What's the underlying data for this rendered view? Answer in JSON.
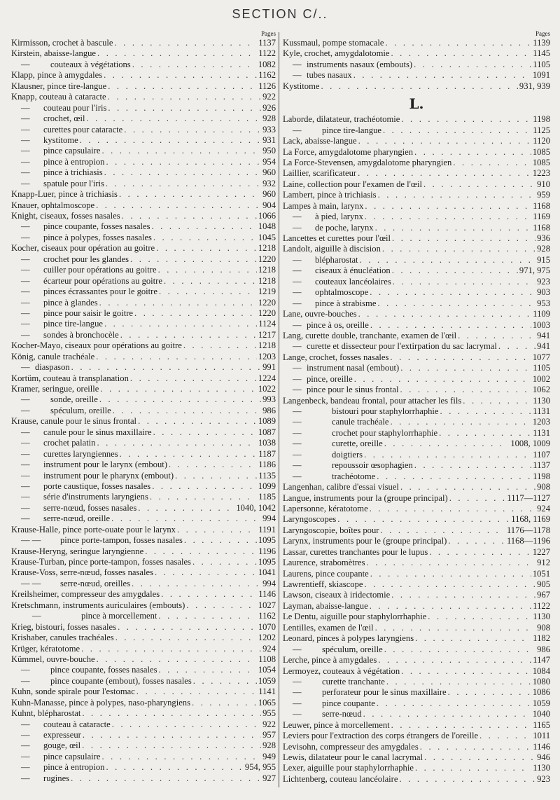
{
  "header": {
    "title": "SECTION C/.."
  },
  "left": {
    "pages_label": "Pages",
    "entries": [
      {
        "text": "Kirmisson, crochet à bascule",
        "pages": "1137"
      },
      {
        "text": "Kirstein, abaisse-langue",
        "pages": "1122"
      },
      {
        "dash": "—",
        "text": "couteaux à végétations",
        "pages": "1082",
        "indent": 2
      },
      {
        "text": "Klapp, pince à amygdales",
        "pages": "1162"
      },
      {
        "text": "Klausner, pince tire-langue",
        "pages": "1126"
      },
      {
        "text": "Knapp, couteau à cataracte",
        "pages": "922"
      },
      {
        "dash": "—",
        "text": "couteau pour l'iris",
        "pages": "926",
        "indent": 1
      },
      {
        "dash": "—",
        "text": "crochet, œil",
        "pages": "928",
        "indent": 1
      },
      {
        "dash": "—",
        "text": "curettes pour cataracte",
        "pages": "933",
        "indent": 1
      },
      {
        "dash": "—",
        "text": "kystitome",
        "pages": "931",
        "indent": 1
      },
      {
        "dash": "—",
        "text": "pince capsulaire",
        "pages": "950",
        "indent": 1
      },
      {
        "dash": "—",
        "text": "pince à entropion",
        "pages": "954",
        "indent": 1
      },
      {
        "dash": "—",
        "text": "pince à trichiasis",
        "pages": "960",
        "indent": 1
      },
      {
        "dash": "—",
        "text": "spatule pour l'iris",
        "pages": "932",
        "indent": 1
      },
      {
        "text": "Knapp-Luer, pince à trichiasis",
        "pages": "960"
      },
      {
        "text": "Knauer, ophtalmoscope",
        "pages": "904"
      },
      {
        "text": "Knight, ciseaux, fosses nasales",
        "pages": "1066"
      },
      {
        "dash": "—",
        "text": "pince coupante, fosses nasales",
        "pages": "1048",
        "indent": 1
      },
      {
        "dash": "—",
        "text": "pince à polypes, fosses nasales",
        "pages": "1045",
        "indent": 1
      },
      {
        "text": "Kocher, ciseaux pour opération au goitre",
        "pages": "1218"
      },
      {
        "dash": "—",
        "text": "crochet pour les glandes",
        "pages": "1220",
        "indent": 1
      },
      {
        "dash": "—",
        "text": "cuiller pour opérations au goitre",
        "pages": "1218",
        "indent": 1
      },
      {
        "dash": "—",
        "text": "écarteur pour opérations au goitre",
        "pages": "1218",
        "indent": 1
      },
      {
        "dash": "—",
        "text": "pinces écrassantes pour le goitre",
        "pages": "1219",
        "indent": 1
      },
      {
        "dash": "—",
        "text": "pince à glandes",
        "pages": "1220",
        "indent": 1
      },
      {
        "dash": "—",
        "text": "pince pour saisir le goitre",
        "pages": "1220",
        "indent": 1
      },
      {
        "dash": "—",
        "text": "pince tire-langue",
        "pages": "1124",
        "indent": 1
      },
      {
        "dash": "—",
        "text": "sondes à bronchocèle",
        "pages": "1217",
        "indent": 1
      },
      {
        "text": "Kocher-Mayo, ciseaux pour opérations au goitre",
        "pages": "1218"
      },
      {
        "text": "König, canule trachéale",
        "pages": "1203"
      },
      {
        "dash": "—",
        "text": "diaspason",
        "pages": "991",
        "indent": 0
      },
      {
        "text": "Kortüm, couteau à transplanation",
        "pages": "1224"
      },
      {
        "text": "Kramer, seringue, oreille",
        "pages": "1022"
      },
      {
        "dash": "—",
        "text": "sonde, oreille",
        "pages": "993",
        "indent": 2
      },
      {
        "dash": "—",
        "text": "spéculum, oreille",
        "pages": "986",
        "indent": 2
      },
      {
        "text": "Krause, canule pour le sinus frontal",
        "pages": "1089"
      },
      {
        "dash": "—",
        "text": "canule pour le sinus maxillaire",
        "pages": "1087",
        "indent": 1
      },
      {
        "dash": "—",
        "text": "crochet palatin",
        "pages": "1038",
        "indent": 1
      },
      {
        "dash": "—",
        "text": "curettes laryngiennes",
        "pages": "1187",
        "indent": 1
      },
      {
        "dash": "—",
        "text": "instrument pour le larynx (embout)",
        "pages": "1186",
        "indent": 1
      },
      {
        "dash": "—",
        "text": "instrument pour le pharynx (embout)",
        "pages": "1135",
        "indent": 1
      },
      {
        "dash": "—",
        "text": "porte caustique, fosses nasales",
        "pages": "1099",
        "indent": 1
      },
      {
        "dash": "—",
        "text": "série d'instruments laryngiens",
        "pages": "1185",
        "indent": 1
      },
      {
        "dash": "—",
        "text": "serre-nœud, fosses nasales",
        "pages": "1040, 1042",
        "indent": 1
      },
      {
        "dash": "—",
        "text": "serre-nœud, oreille",
        "pages": "994",
        "indent": 1
      },
      {
        "text": "Krause-Halle, pince porte-ouate pour le larynx",
        "pages": "1191"
      },
      {
        "dash": "—   —",
        "text": "pince porte-tampon, fosses nasales",
        "pages": "1095",
        "indent": 3
      },
      {
        "text": "Krause-Heryng, seringue laryngienne",
        "pages": "1196"
      },
      {
        "text": "Krause-Turban, pince porte-tampon, fosses nasales",
        "pages": "1095"
      },
      {
        "text": "Krause-Voss, serre-nœud, fosses nasales",
        "pages": "1041"
      },
      {
        "dash": "—   —",
        "text": "serre-nœud, oreilles",
        "pages": "994",
        "indent": 3
      },
      {
        "text": "Kreilsheimer, compresseur des amygdales",
        "pages": "1146"
      },
      {
        "text": "Kretschmann, instruments auriculaires (embouts)",
        "pages": "1027"
      },
      {
        "dash": "—",
        "text": "pince à morcellement",
        "pages": "1162",
        "indent": 4
      },
      {
        "text": "Krieg, bistouri, fosses nasales",
        "pages": "1070"
      },
      {
        "text": "Krishaber, canules trachéales",
        "pages": "1202"
      },
      {
        "text": "Krüger, kératotome",
        "pages": "924"
      },
      {
        "text": "Kümmel, ouvre-bouche",
        "pages": "1108"
      },
      {
        "dash": "—",
        "text": "pince coupante, fosses nasales",
        "pages": "1054",
        "indent": 2
      },
      {
        "dash": "—",
        "text": "pince coupante (embout), fosses nasales",
        "pages": "1059",
        "indent": 2
      },
      {
        "text": "Kuhn, sonde spirale pour l'estomac",
        "pages": "1141"
      },
      {
        "text": "Kuhn-Manasse, pince à polypes, naso-pharyngiens",
        "pages": "1065"
      },
      {
        "text": "Kuhnt, blépharostat",
        "pages": "955"
      },
      {
        "dash": "—",
        "text": "couteau à cataracte",
        "pages": "922",
        "indent": 1
      },
      {
        "dash": "—",
        "text": "expresseur",
        "pages": "957",
        "indent": 1
      },
      {
        "dash": "—",
        "text": "gouge, œil",
        "pages": "928",
        "indent": 1
      },
      {
        "dash": "—",
        "text": "pince capsulaire",
        "pages": "949",
        "indent": 1
      },
      {
        "dash": "—",
        "text": "pince à entropion",
        "pages": "954, 955",
        "indent": 1
      },
      {
        "dash": "—",
        "text": "rugines",
        "pages": "927",
        "indent": 1
      }
    ]
  },
  "right": {
    "pages_label": "Pages",
    "entries": [
      {
        "text": "Kussmaul, pompe stomacale",
        "pages": "1139"
      },
      {
        "text": "Kyle, crochet, amygdalotomie",
        "pages": "1145"
      },
      {
        "dash": "—",
        "text": "instruments nasaux (embouts)",
        "pages": "1105",
        "indent": 0
      },
      {
        "dash": "—",
        "text": "tubes nasaux",
        "pages": "1091",
        "indent": 0
      },
      {
        "text": "Kystitome",
        "pages": "931, 939"
      },
      {
        "letter": "L."
      },
      {
        "text": "Laborde, dilatateur, trachéotomie",
        "pages": "1198"
      },
      {
        "dash": "—",
        "text": "pince tire-langue",
        "pages": "1125",
        "indent": 2
      },
      {
        "text": "Lack, abaisse-langue",
        "pages": "1120"
      },
      {
        "text": "La Force, amygdalotome pharyngien",
        "pages": "1085"
      },
      {
        "text": "La Force-Stevensen, amygdalotome pharyngien",
        "pages": "1085"
      },
      {
        "text": "Laillier, scarificateur",
        "pages": "1223"
      },
      {
        "text": "Laine, collection pour l'examen de l'œil",
        "pages": "910"
      },
      {
        "text": "Lambert, pince à trichiasis",
        "pages": "959"
      },
      {
        "text": "Lampes à main, larynx",
        "pages": "1168"
      },
      {
        "dash": "—",
        "text": "à pied, larynx",
        "pages": "1169",
        "indent": 1
      },
      {
        "dash": "—",
        "text": "de poche, larynx",
        "pages": "1168",
        "indent": 1
      },
      {
        "text": "Lancettes et curettes pour l'œil",
        "pages": "936"
      },
      {
        "text": "Landolt, aiguille à discision",
        "pages": "928"
      },
      {
        "dash": "—",
        "text": "blépharostat",
        "pages": "915",
        "indent": 1
      },
      {
        "dash": "—",
        "text": "ciseaux à énucléation",
        "pages": "971, 975",
        "indent": 1
      },
      {
        "dash": "—",
        "text": "couteaux lancéolaires",
        "pages": "923",
        "indent": 1
      },
      {
        "dash": "—",
        "text": "ophtalmoscope",
        "pages": "903",
        "indent": 1
      },
      {
        "dash": "—",
        "text": "pince à strabisme",
        "pages": "953",
        "indent": 1
      },
      {
        "text": "Lane, ouvre-bouches",
        "pages": "1109"
      },
      {
        "dash": "—",
        "text": "pince à os, oreille",
        "pages": "1003",
        "indent": 0
      },
      {
        "text": "Lang, curette double, tranchante, examen de l'œil",
        "pages": "941"
      },
      {
        "dash": "—",
        "text": "curette et dissecteur pour l'extirpation du sac lacrymal",
        "pages": "941",
        "indent": 0
      },
      {
        "text": "Lange, crochet, fosses nasales",
        "pages": "1077"
      },
      {
        "dash": "—",
        "text": "instrument nasal (embout)",
        "pages": "1105",
        "indent": 0
      },
      {
        "dash": "—",
        "text": "pince, oreille",
        "pages": "1002",
        "indent": 0
      },
      {
        "dash": "—",
        "text": "pince pour le sinus frontal",
        "pages": "1062",
        "indent": 0
      },
      {
        "text": "Langenbeck, bandeau frontal, pour attacher les fils",
        "pages": "1130"
      },
      {
        "dash": "—",
        "text": "bistouri pour staphylorrhaphie",
        "pages": "1131",
        "indent": 3
      },
      {
        "dash": "—",
        "text": "canule trachéale",
        "pages": "1203",
        "indent": 3
      },
      {
        "dash": "—",
        "text": "crochet pour staphylorrhaphie",
        "pages": "1131",
        "indent": 3
      },
      {
        "dash": "—",
        "text": "curette, oreille",
        "pages": "1008, 1009",
        "indent": 3
      },
      {
        "dash": "—",
        "text": "doigtiers",
        "pages": "1107",
        "indent": 3
      },
      {
        "dash": "—",
        "text": "repoussoir œsophagien",
        "pages": "1137",
        "indent": 3
      },
      {
        "dash": "—",
        "text": "trachéotome",
        "pages": "1198",
        "indent": 3
      },
      {
        "text": "Langenhan, calibre d'essai visuel",
        "pages": "908"
      },
      {
        "text": "Langue, instruments pour la (groupe principal)",
        "pages": "1117—1127"
      },
      {
        "text": "Lapersonne, kératotome",
        "pages": "924"
      },
      {
        "text": "Laryngoscopes",
        "pages": "1168, 1169"
      },
      {
        "text": "Laryngoscopie, boîtes pour",
        "pages": "1176—1178"
      },
      {
        "text": "Larynx, instruments pour le (groupe principal)",
        "pages": "1168—1196"
      },
      {
        "text": "Lassar, curettes tranchantes pour le lupus",
        "pages": "1227"
      },
      {
        "text": "Laurence, strabomètres",
        "pages": "912"
      },
      {
        "text": "Laurens, pince coupante",
        "pages": "1051"
      },
      {
        "text": "Lawrentieff, skiascope",
        "pages": "905"
      },
      {
        "text": "Lawson, ciseaux à iridectomie",
        "pages": "967"
      },
      {
        "text": "Layman, abaisse-langue",
        "pages": "1122"
      },
      {
        "text": "Le Dentu, aiguille pour staphylorrhaphie",
        "pages": "1130"
      },
      {
        "text": "Lentilles, examen de l'œil",
        "pages": "908"
      },
      {
        "text": "Leonard, pinces à polypes laryngiens",
        "pages": "1182"
      },
      {
        "dash": "—",
        "text": "spéculum, oreille",
        "pages": "986",
        "indent": 2
      },
      {
        "text": "Lerche, pince à amygdales",
        "pages": "1147"
      },
      {
        "text": "Lermoyez, couteaux à végétation",
        "pages": "1084"
      },
      {
        "dash": "—",
        "text": "curette tranchante",
        "pages": "1080",
        "indent": 2
      },
      {
        "dash": "—",
        "text": "perforateur pour le sinus maxillaire",
        "pages": "1086",
        "indent": 2
      },
      {
        "dash": "—",
        "text": "pince coupante",
        "pages": "1059",
        "indent": 2
      },
      {
        "dash": "—",
        "text": "serre-nœud",
        "pages": "1040",
        "indent": 2
      },
      {
        "text": "Leuwer, pince à morcellement",
        "pages": "1165"
      },
      {
        "text": "Leviers pour l'extraction des corps étrangers de l'oreille",
        "pages": "1011"
      },
      {
        "text": "Levisohn, compresseur des amygdales",
        "pages": "1146"
      },
      {
        "text": "Lewis, dilatateur pour le canal lacrymal",
        "pages": "946"
      },
      {
        "text": "Lexer, aiguille pour staphylorrhaphie",
        "pages": "1130"
      },
      {
        "text": "Lichtenberg, couteau lancéolaire",
        "pages": "923"
      }
    ]
  }
}
